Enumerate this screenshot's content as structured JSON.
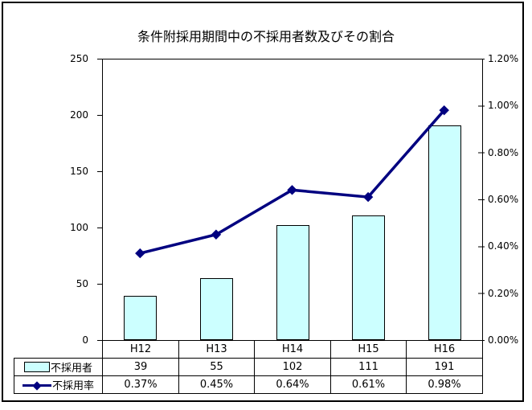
{
  "title": "条件附採用期間中の不採用者数及びその割合",
  "colors": {
    "background": "#FFFFFF",
    "border": "#000000",
    "bar_fill": "#CCFFFF",
    "bar_border": "#000000",
    "line": "#000080"
  },
  "chart_data": {
    "type": "combo-bar-line",
    "title": "条件附採用期間中の不採用者数及びその割合",
    "categories": [
      "H12",
      "H13",
      "H14",
      "H15",
      "H16"
    ],
    "series": [
      {
        "name": "不採用者",
        "chart": "bar",
        "axis": "left",
        "values": [
          39,
          55,
          102,
          111,
          191
        ]
      },
      {
        "name": "不採用率",
        "chart": "line",
        "axis": "right",
        "values_percent": [
          0.37,
          0.45,
          0.64,
          0.61,
          0.98
        ]
      }
    ],
    "left_axis": {
      "min": 0,
      "max": 250,
      "step": 50,
      "tick_labels": [
        "250",
        "200",
        "150",
        "100",
        "50",
        "0"
      ]
    },
    "right_axis": {
      "min_percent": 0,
      "max_percent": 1.2,
      "step_percent": 0.2,
      "tick_labels": [
        "1.20%",
        "1.00%",
        "0.80%",
        "0.60%",
        "0.40%",
        "0.20%",
        "0.00%"
      ]
    },
    "gridlines": false,
    "legend_position": "table-left"
  },
  "table": {
    "categories": [
      "H12",
      "H13",
      "H14",
      "H15",
      "H16"
    ],
    "rows": [
      {
        "label": "不採用者",
        "values": [
          "39",
          "55",
          "102",
          "111",
          "191"
        ]
      },
      {
        "label": "不採用率",
        "values": [
          "0.37%",
          "0.45%",
          "0.64%",
          "0.61%",
          "0.98%"
        ]
      }
    ]
  }
}
